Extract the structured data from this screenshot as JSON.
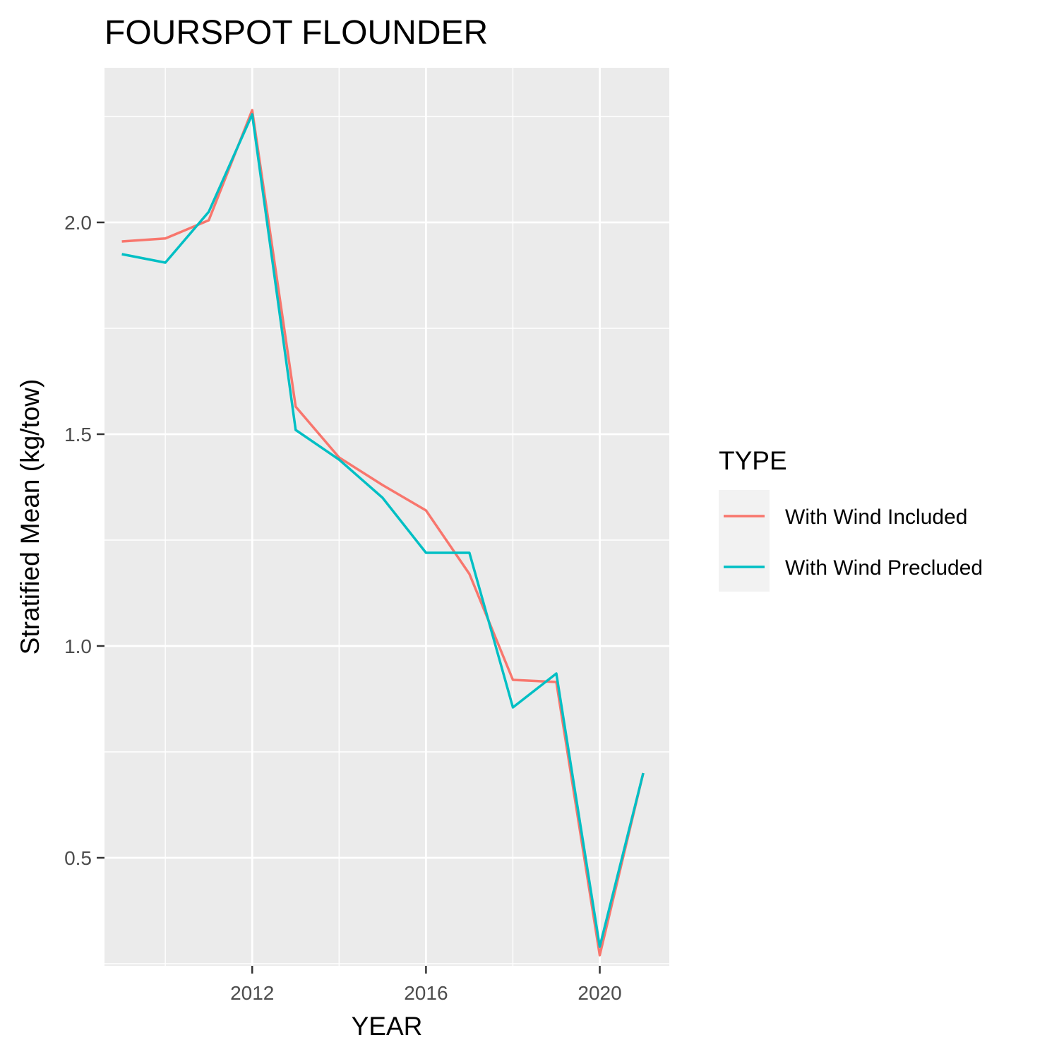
{
  "chart_data": {
    "type": "line",
    "title": "FOURSPOT FLOUNDER",
    "xlabel": "YEAR",
    "ylabel": "Stratified Mean (kg/tow)",
    "x": [
      2009,
      2010,
      2011,
      2012,
      2013,
      2014,
      2015,
      2016,
      2017,
      2018,
      2019,
      2020,
      2021
    ],
    "xlim": [
      2008.6,
      2021.6
    ],
    "ylim": [
      0.245,
      2.365
    ],
    "x_ticks": [
      2012,
      2016,
      2020
    ],
    "x_tick_labels": [
      "2012",
      "2016",
      "2020"
    ],
    "x_minor_ticks": [
      2010,
      2014,
      2018
    ],
    "y_ticks": [
      0.5,
      1.0,
      1.5,
      2.0
    ],
    "y_tick_labels": [
      "0.5",
      "1.0",
      "1.5",
      "2.0"
    ],
    "y_minor_ticks": [
      0.25,
      0.75,
      1.25,
      1.75,
      2.25
    ],
    "grid": true,
    "legend": {
      "title": "TYPE",
      "position": "right"
    },
    "series": [
      {
        "name": "With Wind Included",
        "color": "#F8766D",
        "values": [
          1.955,
          1.962,
          2.005,
          2.265,
          1.565,
          1.445,
          1.38,
          1.32,
          1.17,
          0.92,
          0.915,
          0.27,
          0.7
        ]
      },
      {
        "name": "With Wind Precluded",
        "color": "#00BFC4",
        "values": [
          1.925,
          1.905,
          2.025,
          2.255,
          1.51,
          1.44,
          1.35,
          1.22,
          1.22,
          0.855,
          0.935,
          0.29,
          0.7
        ]
      }
    ]
  }
}
